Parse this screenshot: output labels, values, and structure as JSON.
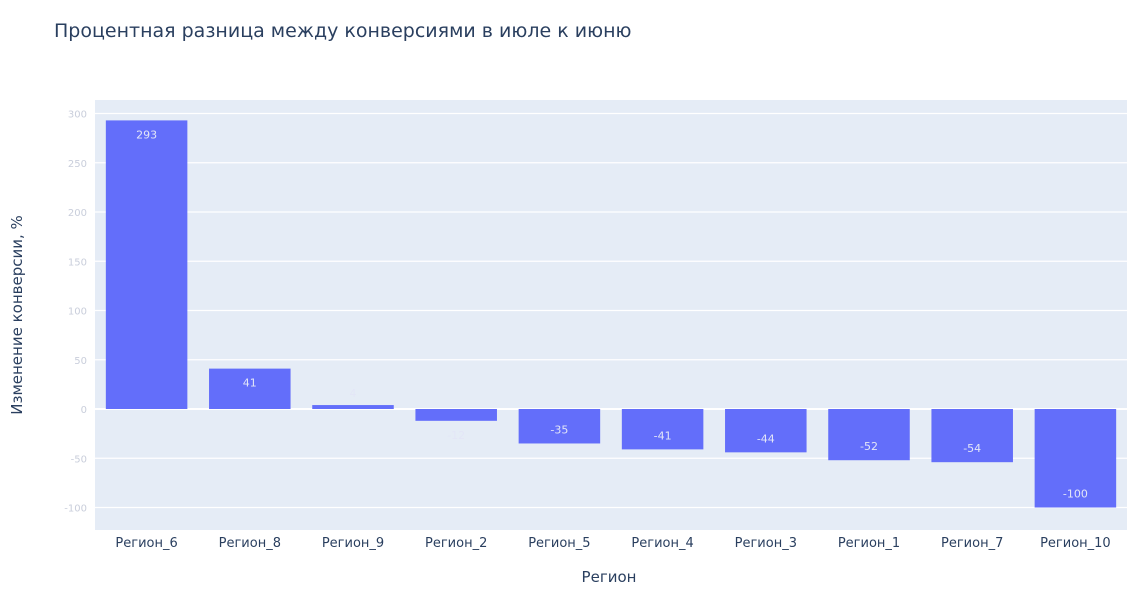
{
  "colors": {
    "bar": "#636efa",
    "plot_bg": "#e5ecf6",
    "grid": "#ffffff",
    "text": "#2a3f5f"
  },
  "chart_data": {
    "type": "bar",
    "title": "Процентная разница между конверсиями в июле к июню",
    "xlabel": "Регион",
    "ylabel": "Изменение конверсии, %",
    "categories": [
      "Регион_6",
      "Регион_8",
      "Регион_9",
      "Регион_2",
      "Регион_5",
      "Регион_4",
      "Регион_3",
      "Регион_1",
      "Регион_7",
      "Регион_10"
    ],
    "values": [
      293,
      41,
      4,
      -12,
      -35,
      -41,
      -44,
      -52,
      -54,
      -100
    ],
    "ylim": [
      -110,
      300
    ],
    "grid": true,
    "legend": "none"
  }
}
